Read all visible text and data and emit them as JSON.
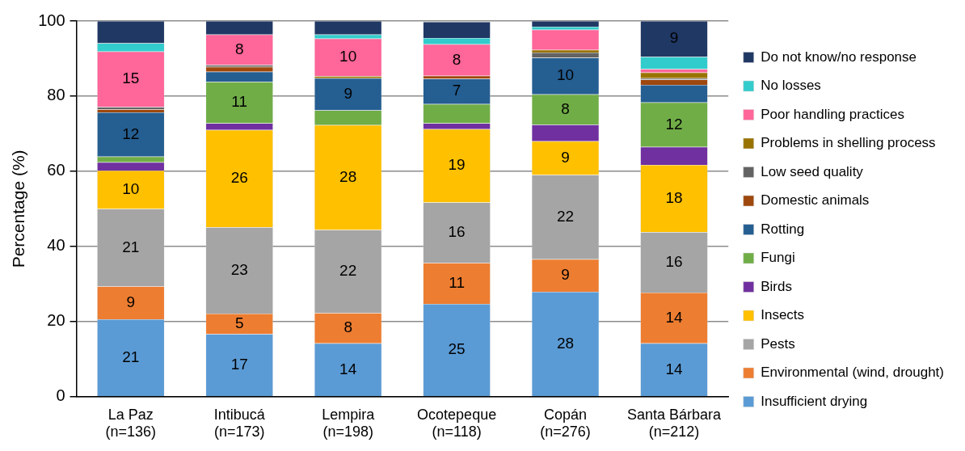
{
  "chart_data": {
    "type": "bar",
    "stacked": true,
    "ylabel": "Percentage (%)",
    "ylim": [
      0,
      100
    ],
    "yticks": [
      0,
      20,
      40,
      60,
      80,
      100
    ],
    "grid": "y",
    "legend": "right",
    "categories": [
      "La Paz\n(n=136)",
      "Intibucá\n(n=173)",
      "Lempira\n(n=198)",
      "Ocotepeque\n(n=118)",
      "Copán\n(n=276)",
      "Santa Bárbara\n(n=212)"
    ],
    "series": [
      {
        "name": "Insufficient drying",
        "color": "#5b9bd5",
        "values": [
          20.6,
          16.7,
          14.2,
          24.7,
          27.9,
          14.2
        ],
        "value_labels": [
          "21",
          "17",
          "14",
          "25",
          "28",
          "14"
        ]
      },
      {
        "name": "Environmental (wind, drought)",
        "color": "#ed7d31",
        "values": [
          8.8,
          5.4,
          8.1,
          10.9,
          8.7,
          13.5
        ],
        "value_labels": [
          "9",
          "5",
          "8",
          "11",
          "9",
          "14"
        ]
      },
      {
        "name": "Pests",
        "color": "#a5a5a5",
        "values": [
          20.6,
          23.0,
          22.1,
          16.1,
          22.4,
          16.1
        ],
        "value_labels": [
          "21",
          "23",
          "22",
          "16",
          "22",
          "16"
        ]
      },
      {
        "name": "Insects",
        "color": "#ffc000",
        "values": [
          10.2,
          25.9,
          27.9,
          19.5,
          9.0,
          17.9
        ],
        "value_labels": [
          "10",
          "26",
          "28",
          "19",
          "9",
          "18"
        ]
      },
      {
        "name": "Birds",
        "color": "#7030a0",
        "values": [
          2.2,
          1.8,
          0,
          1.6,
          4.4,
          4.8
        ],
        "value_labels": [
          null,
          null,
          null,
          null,
          null,
          null
        ]
      },
      {
        "name": "Fungi",
        "color": "#70ad47",
        "values": [
          1.5,
          11.0,
          3.9,
          5.1,
          8.1,
          11.8
        ],
        "value_labels": [
          null,
          "11",
          null,
          null,
          "8",
          "12"
        ]
      },
      {
        "name": "Rotting",
        "color": "#255e91",
        "values": [
          11.8,
          2.7,
          8.6,
          6.7,
          9.7,
          4.7
        ],
        "value_labels": [
          "12",
          null,
          "9",
          "7",
          "10",
          null
        ]
      },
      {
        "name": "Domestic animals",
        "color": "#9e480e",
        "values": [
          0.8,
          1.3,
          0,
          0.8,
          0,
          1.4
        ],
        "value_labels": [
          null,
          null,
          null,
          null,
          null,
          null
        ]
      },
      {
        "name": "Low seed quality",
        "color": "#636363",
        "values": [
          0.6,
          0.5,
          0,
          0,
          1.4,
          0.4
        ],
        "value_labels": [
          null,
          null,
          null,
          null,
          null,
          null
        ]
      },
      {
        "name": "Problems in shelling process",
        "color": "#997300",
        "values": [
          0,
          0,
          0.5,
          0,
          0.7,
          1.5
        ],
        "value_labels": [
          null,
          null,
          null,
          null,
          null,
          null
        ]
      },
      {
        "name": "Poor handling practices",
        "color": "#ff6699",
        "values": [
          14.8,
          8.1,
          10.0,
          8.4,
          5.4,
          0.9
        ],
        "value_labels": [
          "15",
          "8",
          "10",
          "8",
          null,
          null
        ]
      },
      {
        "name": "No losses",
        "color": "#33cccc",
        "values": [
          2.2,
          0,
          1.1,
          1.7,
          0.8,
          3.3
        ],
        "value_labels": [
          null,
          null,
          null,
          null,
          null,
          null
        ]
      },
      {
        "name": "Do not know/no response",
        "color": "#203864",
        "values": [
          5.9,
          3.6,
          3.6,
          4.3,
          1.5,
          9.5
        ],
        "value_labels": [
          null,
          null,
          null,
          null,
          null,
          "9"
        ]
      }
    ]
  }
}
